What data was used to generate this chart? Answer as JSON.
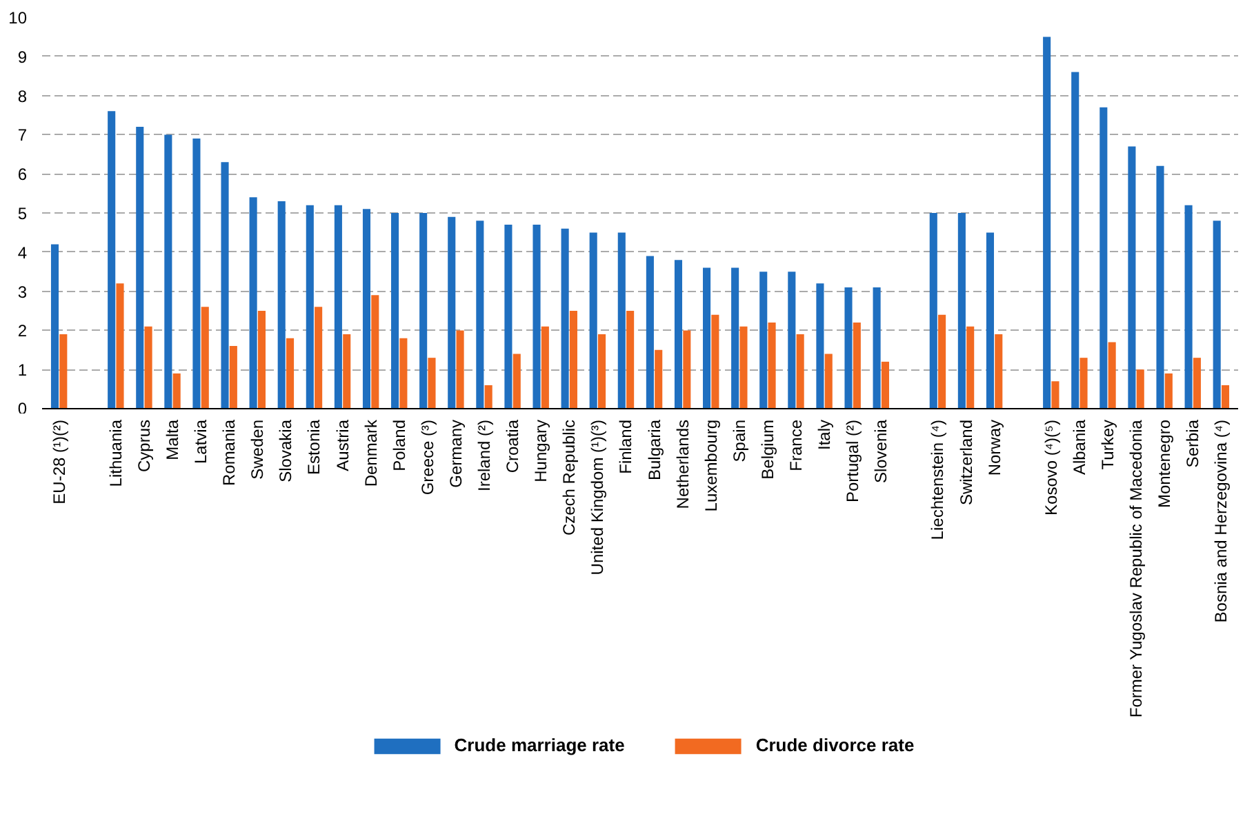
{
  "chart_data": {
    "type": "bar",
    "categories": [
      "EU-28 (¹)(²)",
      null,
      "Lithuania",
      "Cyprus",
      "Malta",
      "Latvia",
      "Romania",
      "Sweden",
      "Slovakia",
      "Estonia",
      "Austria",
      "Denmark",
      "Poland",
      "Greece (³)",
      "Germany",
      "Ireland (²)",
      "Croatia",
      "Hungary",
      "Czech Republic",
      "United Kingdom (¹)(³)",
      "Finland",
      "Bulgaria",
      "Netherlands",
      "Luxembourg",
      "Spain",
      "Belgium",
      "France",
      "Italy",
      "Portugal (²)",
      "Slovenia",
      null,
      "Liechtenstein (⁴)",
      "Switzerland",
      "Norway",
      null,
      "Kosovo (⁴)(⁵)",
      "Albania",
      "Turkey",
      "Former Yugoslav Republic of Macedonia",
      "Montenegro",
      "Serbia",
      "Bosnia and Herzegovina (⁴)"
    ],
    "series": [
      {
        "name": "Crude marriage rate",
        "color": "#1f6fc0",
        "values": [
          4.2,
          null,
          7.6,
          7.2,
          7.0,
          6.9,
          6.3,
          5.4,
          5.3,
          5.2,
          5.2,
          5.1,
          5.0,
          5.0,
          4.9,
          4.8,
          4.7,
          4.7,
          4.6,
          4.5,
          4.5,
          3.9,
          3.8,
          3.6,
          3.6,
          3.5,
          3.5,
          3.2,
          3.1,
          3.1,
          null,
          5.0,
          5.0,
          4.5,
          null,
          9.5,
          8.6,
          7.7,
          6.7,
          6.2,
          5.2,
          4.8
        ]
      },
      {
        "name": "Crude divorce rate",
        "color": "#f26a21",
        "values": [
          1.9,
          null,
          3.2,
          2.1,
          0.9,
          2.6,
          1.6,
          2.5,
          1.8,
          2.6,
          1.9,
          2.9,
          1.8,
          1.3,
          2.0,
          0.6,
          1.4,
          2.1,
          2.5,
          1.9,
          2.5,
          1.5,
          2.0,
          2.4,
          2.1,
          2.2,
          1.9,
          1.4,
          2.2,
          1.2,
          null,
          2.4,
          2.1,
          1.9,
          null,
          0.7,
          1.3,
          1.7,
          1.0,
          0.9,
          1.3,
          0.6
        ]
      }
    ],
    "ylim": [
      0,
      10
    ],
    "yticks": [
      0,
      1,
      2,
      3,
      4,
      5,
      6,
      7,
      8,
      9,
      10
    ],
    "grid": "y",
    "legend": "bottom"
  }
}
